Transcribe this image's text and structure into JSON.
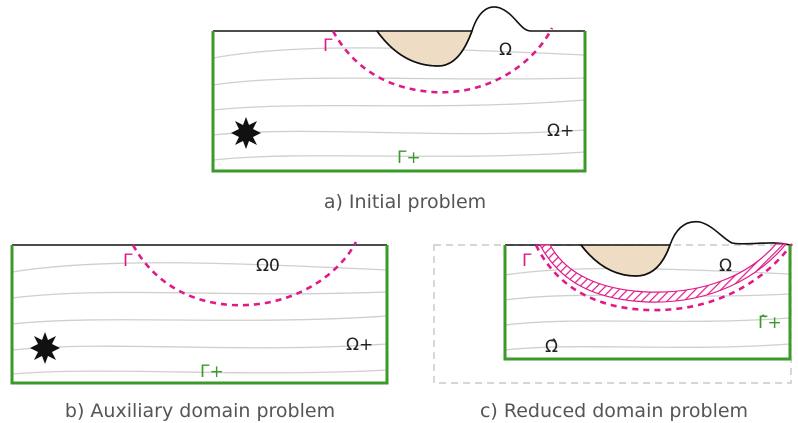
{
  "panels": {
    "a": {
      "caption": "a) Initial problem",
      "omega": "Ω",
      "omega_plus": "Ω+",
      "gamma": "Γ",
      "gamma_plus": "Γ+"
    },
    "b": {
      "caption": "b) Auxiliary domain problem",
      "omega0": "Ω0",
      "omega_plus": "Ω+",
      "gamma": "Γ",
      "gamma_plus": "Γ+"
    },
    "c": {
      "caption": "c) Reduced domain problem",
      "omega": "Ω",
      "omega_hat": "Ω̂",
      "gamma": "Γ",
      "gamma_hat_plus": "Γ̂+"
    }
  },
  "colors": {
    "interface": "#e0198a",
    "boundary": "#3a9a2a",
    "obstacle": "#efdcc4",
    "flow_lines": "#cfcfcf"
  }
}
